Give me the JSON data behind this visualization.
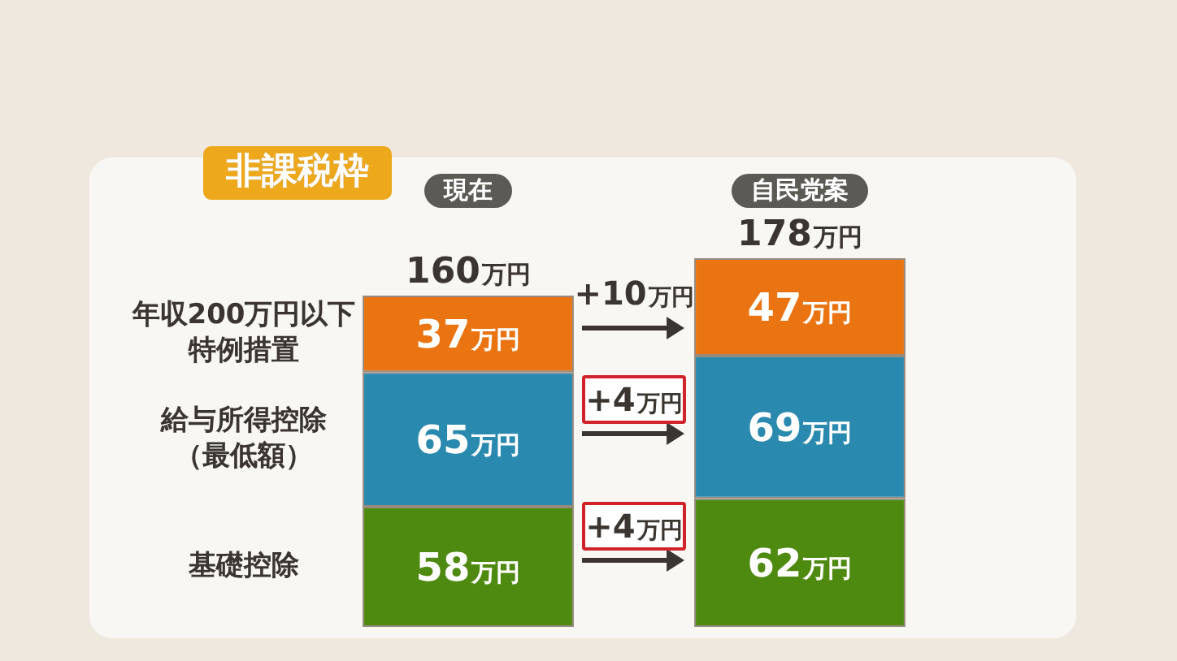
{
  "chart_data": {
    "type": "bar",
    "title": "非課税枠",
    "categories": [
      "現在",
      "自民党案"
    ],
    "stacked": true,
    "series": [
      {
        "name": "基礎控除",
        "color": "#4f8a10",
        "values": [
          58,
          62
        ],
        "value_labels": [
          "58万円",
          "62万円"
        ]
      },
      {
        "name": "給与所得控除（最低額）",
        "color": "#2a89ae",
        "values": [
          65,
          69
        ],
        "value_labels": [
          "65万円",
          "69万円"
        ]
      },
      {
        "name": "年収200万円以下特例措置",
        "color": "#ea7412",
        "values": [
          37,
          47
        ],
        "value_labels": [
          "37万円",
          "47万円"
        ]
      }
    ],
    "totals": [
      "160万円",
      "178万円"
    ],
    "annotations": [
      "+10万円",
      "+4万円",
      "+4万円"
    ],
    "tick_labels": "x"
  }
}
